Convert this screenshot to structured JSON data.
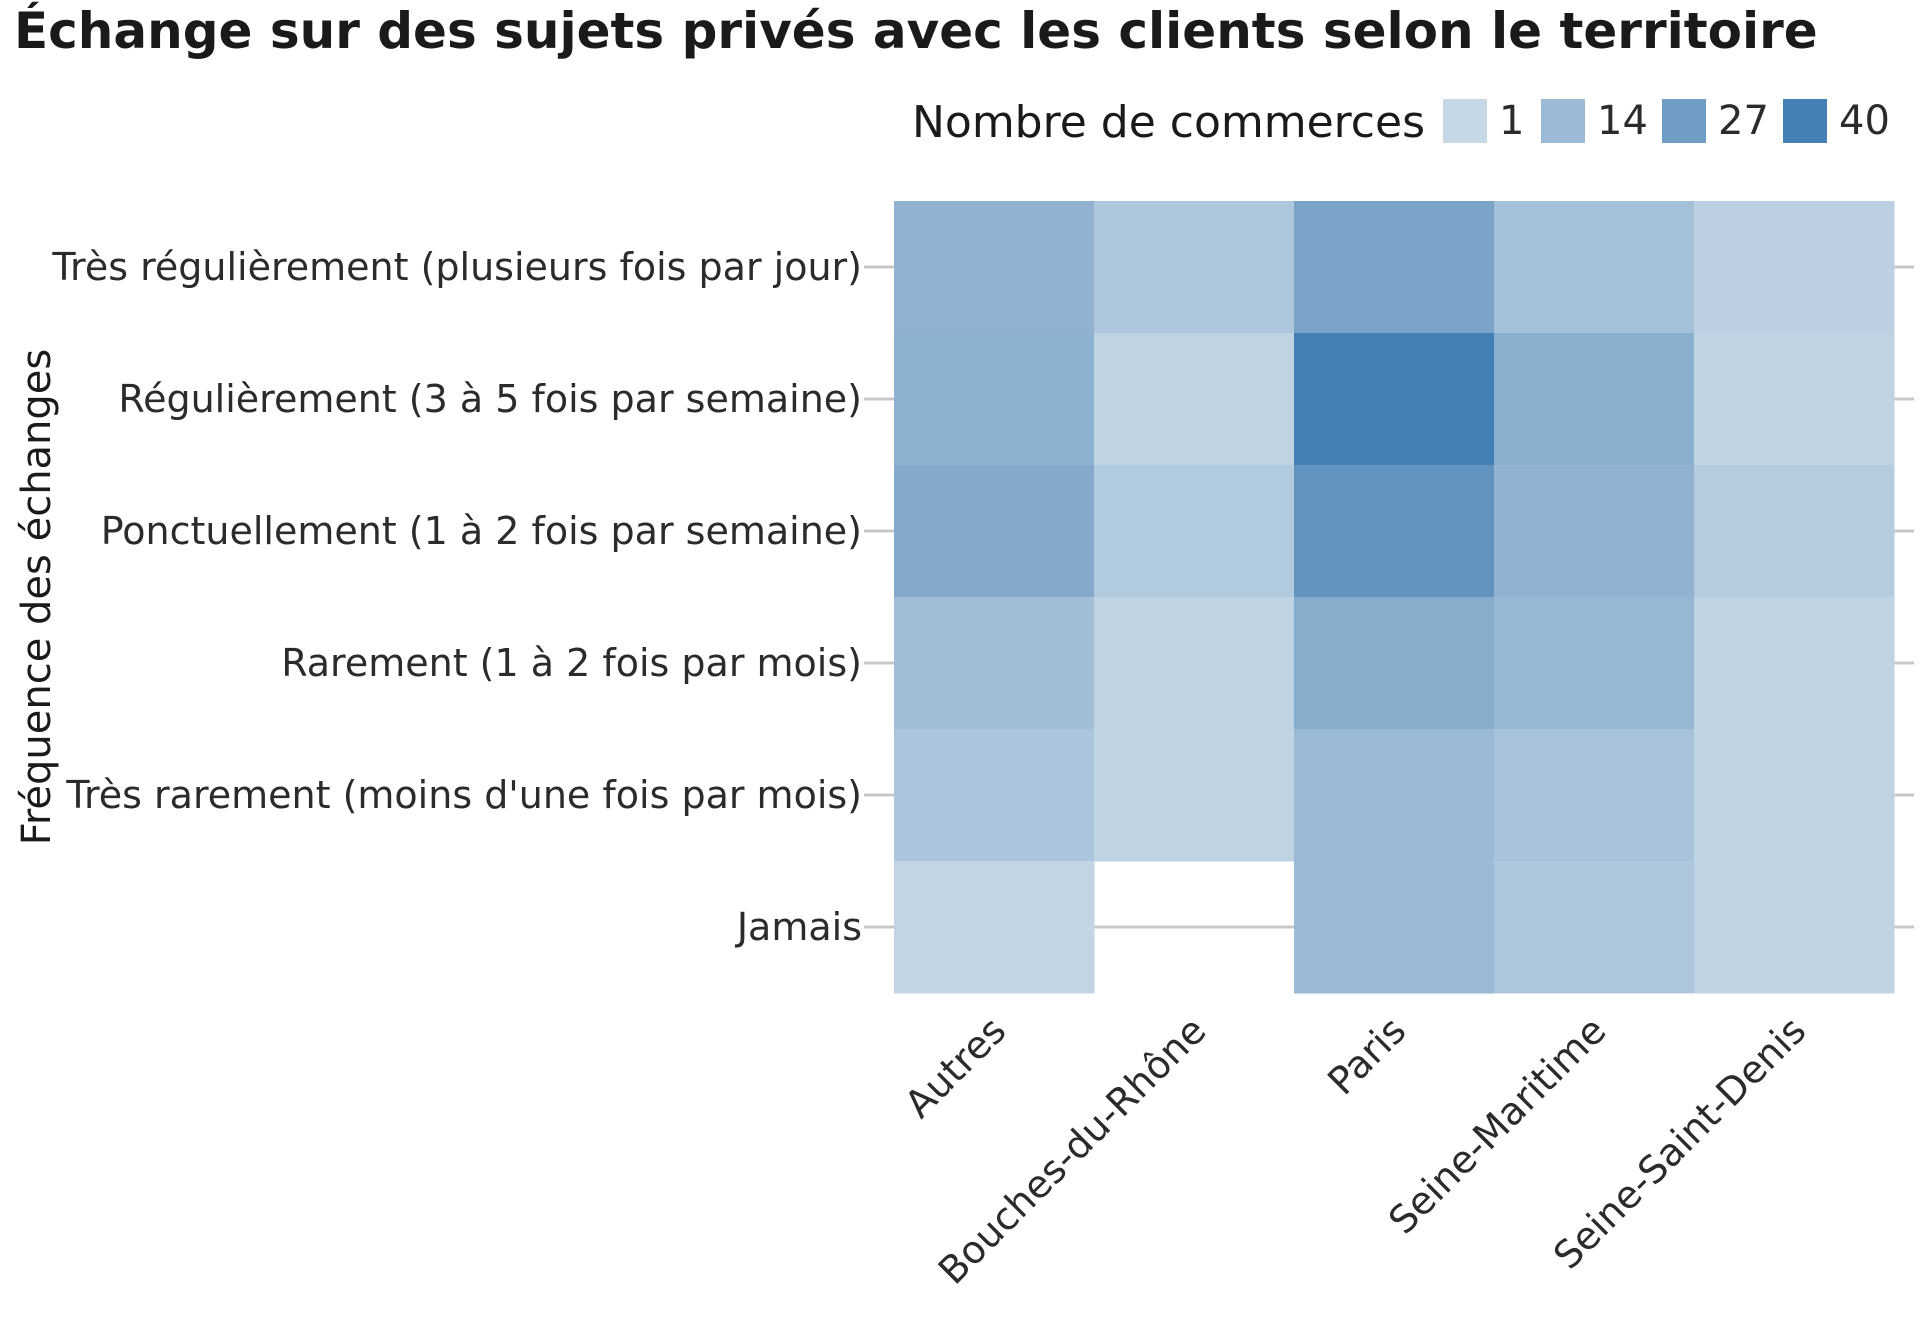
{
  "chart_data": {
    "type": "heatmap",
    "title": "Échange sur des sujets privés avec les clients selon le territoire",
    "xlabel": "",
    "ylabel": "Fréquence des échanges",
    "x_categories": [
      "Autres",
      "Bouches-du-Rhône",
      "Paris",
      "Seine-Maritime",
      "Seine-Saint-Denis"
    ],
    "y_categories": [
      "Très régulièrement (plusieurs fois par jour)",
      "Régulièrement (3 à 5 fois par semaine)",
      "Ponctuellement (1 à 2 fois par semaine)",
      "Rarement (1 à 2 fois par mois)",
      "Très rarement (moins d'une fois par mois)",
      "Jamais"
    ],
    "values": [
      [
        17,
        8,
        24,
        11,
        4
      ],
      [
        18,
        3,
        40,
        19,
        3
      ],
      [
        21,
        7,
        31,
        17,
        6
      ],
      [
        12,
        3,
        20,
        15,
        3
      ],
      [
        9,
        3,
        14,
        10,
        3
      ],
      [
        2,
        null,
        14,
        8,
        3
      ]
    ],
    "legend": {
      "title": "Nombre de commerces",
      "breaks": [
        1,
        14,
        27,
        40
      ],
      "position": "top-right"
    },
    "color_scale": {
      "low": "#c6d7e6",
      "high": "#4480b3",
      "min": 1,
      "max": 40
    },
    "grid": false
  }
}
